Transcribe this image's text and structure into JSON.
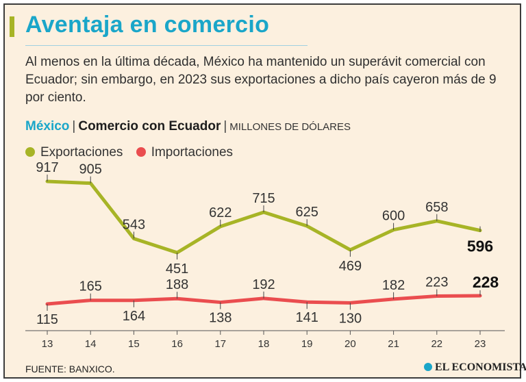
{
  "header": {
    "title": "Aventaja en comercio",
    "intro": "Al menos en la última década, México ha mantenido un superávit comercial con Ecuador; sin embargo, en 2023 sus exportaciones a dicho país cayeron más de 9 por ciento.",
    "subtitle_country": "México",
    "subtitle_separator": "|",
    "subtitle_main": "Comercio con Ecuador",
    "subtitle_unit": "MILLONES DE DÓLARES"
  },
  "colors": {
    "background": "#fcf0df",
    "title": "#1aa6c9",
    "exports": "#a7b426",
    "imports": "#ea4d4f"
  },
  "legend": {
    "exports": "Exportaciones",
    "imports": "Importaciones"
  },
  "chart_data": {
    "type": "line",
    "title": "Comercio con Ecuador",
    "unit": "Millones de dólares",
    "categories": [
      "13",
      "14",
      "15",
      "16",
      "17",
      "18",
      "19",
      "20",
      "21",
      "22",
      "23"
    ],
    "series": [
      {
        "name": "Exportaciones",
        "color": "#a7b426",
        "values": [
          917,
          905,
          543,
          451,
          622,
          715,
          625,
          469,
          600,
          658,
          596
        ],
        "labels": [
          "917",
          "905",
          "543",
          "451",
          "622",
          "715",
          "625",
          "469",
          "600",
          "658",
          "596"
        ]
      },
      {
        "name": "Importaciones",
        "color": "#ea4d4f",
        "values": [
          115,
          165,
          164,
          188,
          138,
          192,
          141,
          130,
          182,
          223,
          228
        ],
        "labels": [
          "115",
          "165",
          "164",
          "188",
          "138",
          "192",
          "141",
          "130",
          "182",
          "223",
          "228"
        ]
      }
    ],
    "legend_position": "top-left",
    "grid": false
  },
  "footer": {
    "source": "FUENTE: BANXICO.",
    "brand": "EL ECONOMISTA"
  }
}
